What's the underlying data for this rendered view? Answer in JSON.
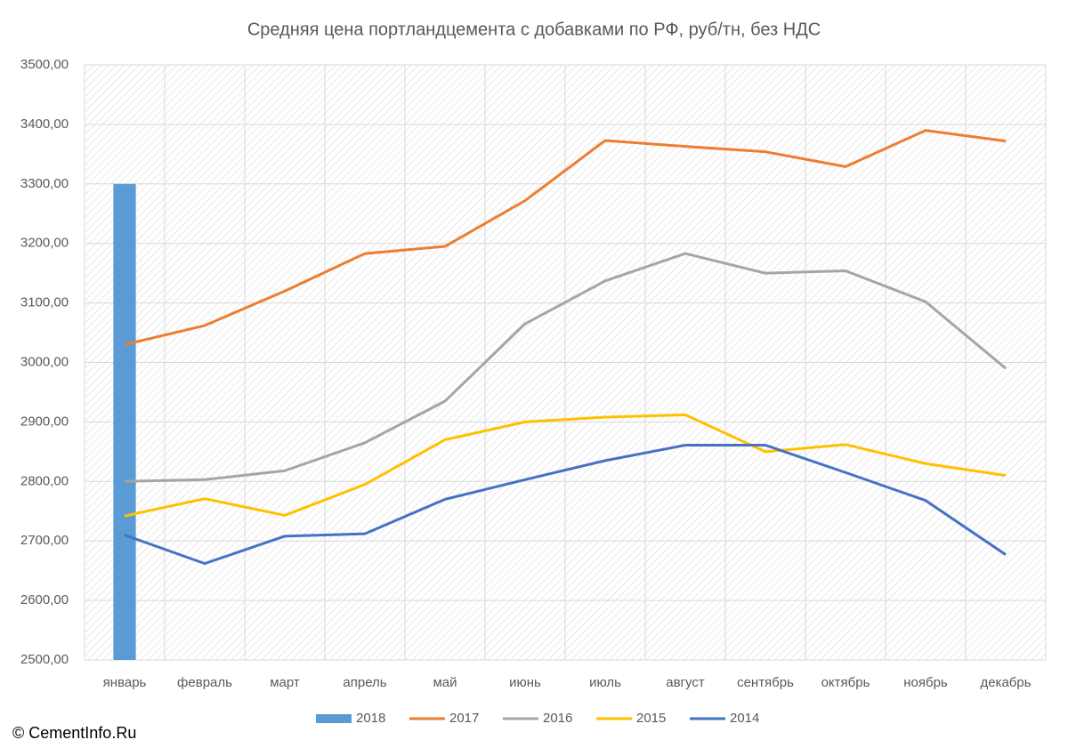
{
  "chart_data": {
    "type": "line",
    "title": "Средняя цена портландцемента с добавками по РФ, руб/тн, без НДС",
    "categories": [
      "январь",
      "февраль",
      "март",
      "апрель",
      "май",
      "июнь",
      "июль",
      "август",
      "сентябрь",
      "октябрь",
      "ноябрь",
      "декабрь"
    ],
    "series": [
      {
        "name": "2018",
        "type": "bar",
        "color": "#5b9bd5",
        "values": [
          3300,
          null,
          null,
          null,
          null,
          null,
          null,
          null,
          null,
          null,
          null,
          null
        ]
      },
      {
        "name": "2017",
        "type": "line",
        "color": "#ed7d31",
        "values": [
          3030,
          3062,
          3120,
          3183,
          3195,
          3272,
          3373,
          3363,
          3354,
          3329,
          3390,
          3372
        ]
      },
      {
        "name": "2016",
        "type": "line",
        "color": "#a5a5a5",
        "values": [
          2800,
          2803,
          2818,
          2865,
          2935,
          3065,
          3137,
          3183,
          3150,
          3154,
          3102,
          2990
        ]
      },
      {
        "name": "2015",
        "type": "line",
        "color": "#ffc000",
        "values": [
          2742,
          2771,
          2743,
          2795,
          2870,
          2900,
          2908,
          2912,
          2850,
          2862,
          2830,
          2810
        ]
      },
      {
        "name": "2014",
        "type": "line",
        "color": "#4472c4",
        "values": [
          2710,
          2662,
          2708,
          2712,
          2770,
          2803,
          2835,
          2861,
          2861,
          2815,
          2768,
          2677
        ]
      }
    ],
    "ylim": [
      2500,
      3500
    ],
    "yticks": [
      {
        "value": 2500,
        "label": "2500,00"
      },
      {
        "value": 2600,
        "label": "2600,00"
      },
      {
        "value": 2700,
        "label": "2700,00"
      },
      {
        "value": 2800,
        "label": "2800,00"
      },
      {
        "value": 2900,
        "label": "2900,00"
      },
      {
        "value": 3000,
        "label": "3000,00"
      },
      {
        "value": 3100,
        "label": "3100,00"
      },
      {
        "value": 3200,
        "label": "3200,00"
      },
      {
        "value": 3300,
        "label": "3300,00"
      },
      {
        "value": 3400,
        "label": "3400,00"
      },
      {
        "value": 3500,
        "label": "3500,00"
      }
    ],
    "grid": true,
    "legend": "bottom"
  },
  "footer": "© CementInfo.Ru"
}
